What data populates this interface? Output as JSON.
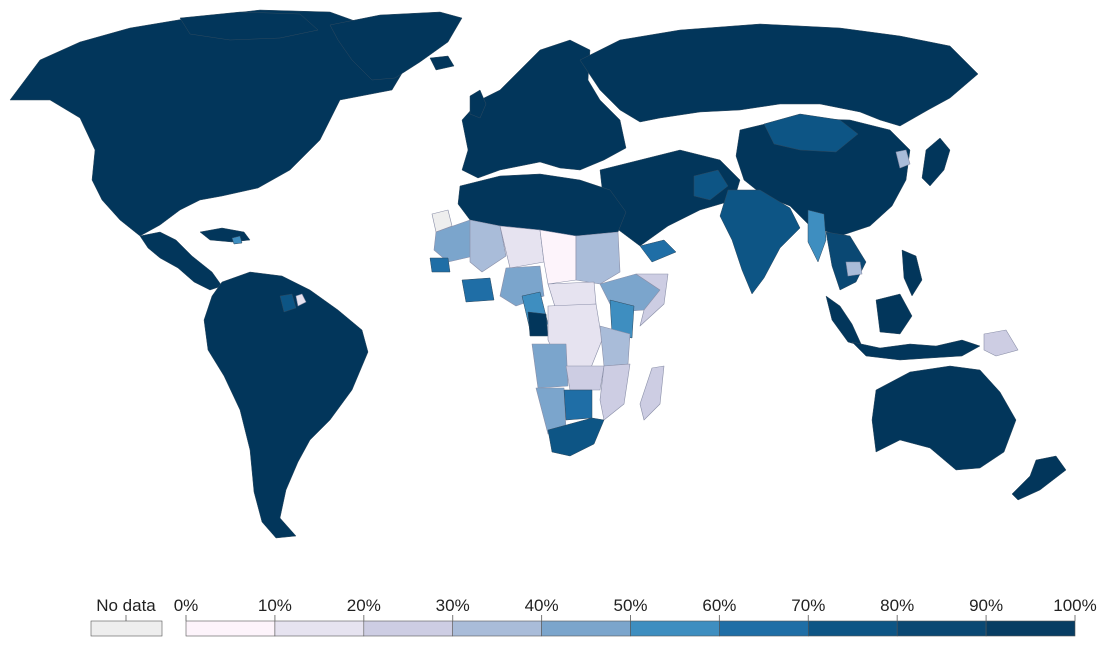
{
  "legend": {
    "no_data_label": "No data",
    "no_data_color": "#eeeeee",
    "ticks": [
      "0%",
      "10%",
      "20%",
      "30%",
      "40%",
      "50%",
      "60%",
      "70%",
      "80%",
      "90%",
      "100%"
    ],
    "bin_colors": [
      "#fdf4fb",
      "#e6e3f0",
      "#cdcde3",
      "#a9bcd9",
      "#7ba5cc",
      "#3e8ec0",
      "#1f6ea6",
      "#0d5585",
      "#0a4873",
      "#073d63",
      "#02365b"
    ]
  },
  "colors": {
    "land_high": "#02365b",
    "ocean": "#ffffff"
  }
}
